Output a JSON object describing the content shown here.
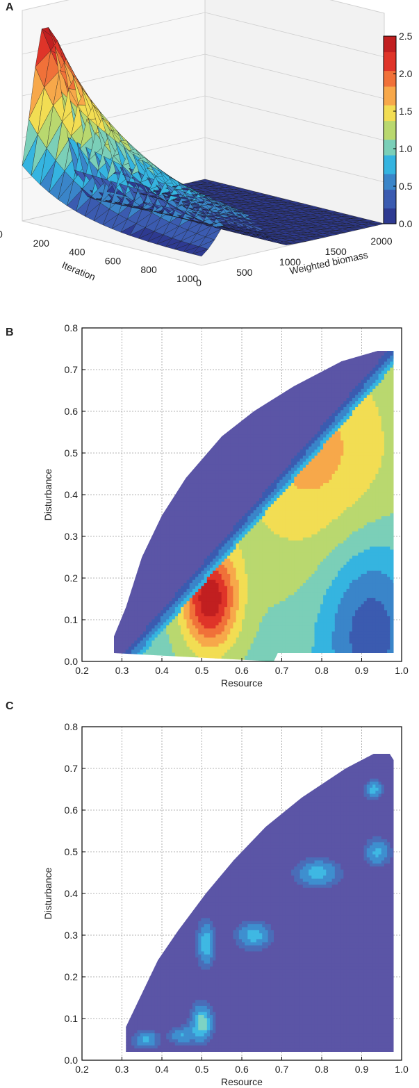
{
  "panels": {
    "a_label": "A",
    "b_label": "B",
    "c_label": "C"
  },
  "colors": {
    "palette": [
      "#2e3a91",
      "#3b5bb0",
      "#3a85c9",
      "#35b4e0",
      "#7bcfb8",
      "#b9d86f",
      "#f2dd53",
      "#f7a84a",
      "#f07139",
      "#df3429",
      "#c11f20"
    ],
    "contour_base": "#5b55a6"
  },
  "chart_data": [
    {
      "id": "A",
      "type": "surface",
      "xlabel": "Iteration",
      "ylabel": "Weighted biomass",
      "xticks": [
        "0",
        "200",
        "400",
        "600",
        "800",
        "1000"
      ],
      "yticks": [
        "0",
        "500",
        "1000",
        "1500",
        "2000"
      ],
      "xlim": [
        0,
        1000
      ],
      "ylim": [
        0,
        2000
      ],
      "zlim": [
        0,
        2.5
      ],
      "colorbar_ticks": [
        "0.0",
        "0.5",
        "1.0",
        "1.5",
        "2.0",
        "2.5"
      ],
      "peak": {
        "iteration": 0,
        "weighted_biomass": 250,
        "value": 2.5
      },
      "secondary_ridge": {
        "weighted_biomass": 1050,
        "value": 0.45
      },
      "grid": true
    },
    {
      "id": "B",
      "type": "heatmap",
      "xlabel": "Resource",
      "ylabel": "Disturbance",
      "xlim": [
        0.2,
        1.0
      ],
      "ylim": [
        0.0,
        0.8
      ],
      "xticks": [
        "0.2",
        "0.3",
        "0.4",
        "0.5",
        "0.6",
        "0.7",
        "0.8",
        "0.9",
        "1.0"
      ],
      "yticks": [
        "0.0",
        "0.1",
        "0.2",
        "0.3",
        "0.4",
        "0.5",
        "0.6",
        "0.7",
        "0.8"
      ],
      "grid": true,
      "domain_polygon": [
        [
          0.28,
          0.02
        ],
        [
          0.28,
          0.06
        ],
        [
          0.31,
          0.13
        ],
        [
          0.35,
          0.25
        ],
        [
          0.4,
          0.35
        ],
        [
          0.46,
          0.44
        ],
        [
          0.55,
          0.54
        ],
        [
          0.63,
          0.6
        ],
        [
          0.73,
          0.66
        ],
        [
          0.85,
          0.72
        ],
        [
          0.94,
          0.745
        ],
        [
          0.98,
          0.745
        ],
        [
          0.98,
          0.02
        ],
        [
          0.69,
          0.02
        ],
        [
          0.68,
          0.0
        ]
      ],
      "hotspots": [
        {
          "resource": 0.52,
          "disturbance": 0.15,
          "level": 1.0,
          "spread_resource": 0.07,
          "spread_disturbance": 0.12
        },
        {
          "resource": 0.78,
          "disturbance": 0.5,
          "level": 0.45,
          "spread_resource": 0.22,
          "spread_disturbance": 0.28
        },
        {
          "resource": 0.92,
          "disturbance": 0.08,
          "level": -0.55,
          "spread_resource": 0.12,
          "spread_disturbance": 0.22
        }
      ]
    },
    {
      "id": "C",
      "type": "heatmap",
      "xlabel": "Resource",
      "ylabel": "Disturbance",
      "xlim": [
        0.2,
        1.0
      ],
      "ylim": [
        0.0,
        0.8
      ],
      "xticks": [
        "0.2",
        "0.3",
        "0.4",
        "0.5",
        "0.6",
        "0.7",
        "0.8",
        "0.9",
        "1.0"
      ],
      "yticks": [
        "0.0",
        "0.1",
        "0.2",
        "0.3",
        "0.4",
        "0.5",
        "0.6",
        "0.7",
        "0.8"
      ],
      "grid": true,
      "domain_polygon": [
        [
          0.31,
          0.02
        ],
        [
          0.31,
          0.08
        ],
        [
          0.34,
          0.14
        ],
        [
          0.39,
          0.24
        ],
        [
          0.44,
          0.31
        ],
        [
          0.51,
          0.4
        ],
        [
          0.58,
          0.48
        ],
        [
          0.66,
          0.56
        ],
        [
          0.75,
          0.63
        ],
        [
          0.86,
          0.7
        ],
        [
          0.93,
          0.735
        ],
        [
          0.97,
          0.735
        ],
        [
          0.98,
          0.72
        ],
        [
          0.98,
          0.02
        ]
      ],
      "hotspots": [
        {
          "resource": 0.5,
          "disturbance": 0.09,
          "level": 0.7,
          "spread_resource": 0.025,
          "spread_disturbance": 0.04
        },
        {
          "resource": 0.51,
          "disturbance": 0.28,
          "level": 0.55,
          "spread_resource": 0.02,
          "spread_disturbance": 0.05
        },
        {
          "resource": 0.63,
          "disturbance": 0.3,
          "level": 0.5,
          "spread_resource": 0.04,
          "spread_disturbance": 0.03
        },
        {
          "resource": 0.79,
          "disturbance": 0.45,
          "level": 0.5,
          "spread_resource": 0.05,
          "spread_disturbance": 0.03
        },
        {
          "resource": 0.94,
          "disturbance": 0.5,
          "level": 0.45,
          "spread_resource": 0.03,
          "spread_disturbance": 0.03
        },
        {
          "resource": 0.93,
          "disturbance": 0.65,
          "level": 0.5,
          "spread_resource": 0.02,
          "spread_disturbance": 0.02
        },
        {
          "resource": 0.36,
          "disturbance": 0.05,
          "level": 0.45,
          "spread_resource": 0.03,
          "spread_disturbance": 0.02
        },
        {
          "resource": 0.45,
          "disturbance": 0.06,
          "level": 0.4,
          "spread_resource": 0.03,
          "spread_disturbance": 0.02
        }
      ]
    }
  ]
}
